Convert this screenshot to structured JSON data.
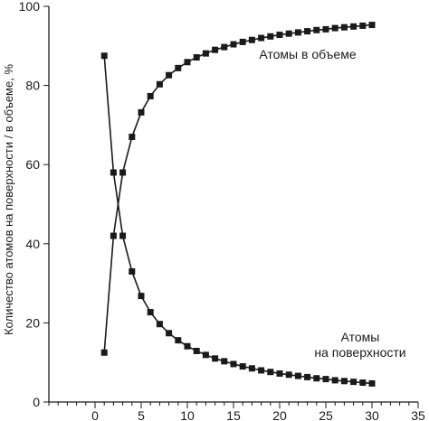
{
  "chart_data": {
    "type": "line",
    "ylabel": "Количество атомов на поверхности / в объеме, %",
    "xlabel": "",
    "xlim": [
      -5,
      35
    ],
    "ylim": [
      0,
      100
    ],
    "xticks": [
      0,
      5,
      10,
      15,
      20,
      25,
      30,
      35
    ],
    "yticks": [
      0,
      20,
      40,
      60,
      80,
      100
    ],
    "grid": false,
    "markers": "square",
    "color": "#1a1a1a",
    "annotations": [
      {
        "lines": [
          "Атомы в объеме"
        ],
        "series": 0
      },
      {
        "lines": [
          "Атомы",
          "на поверхности"
        ],
        "series": 1
      }
    ],
    "series": [
      {
        "name": "Атомы в объеме",
        "x": [
          1,
          2,
          3,
          4,
          5,
          6,
          7,
          8,
          9,
          10,
          11,
          12,
          13,
          14,
          15,
          16,
          17,
          18,
          19,
          20,
          21,
          22,
          23,
          24,
          25,
          26,
          27,
          28,
          29,
          30
        ],
        "y": [
          12.5,
          42,
          58,
          67,
          73.2,
          77.3,
          80.3,
          82.6,
          84.4,
          85.9,
          87.1,
          88.1,
          89.0,
          89.7,
          90.4,
          91.0,
          91.5,
          92.0,
          92.4,
          92.8,
          93.1,
          93.4,
          93.7,
          94.0,
          94.2,
          94.5,
          94.7,
          94.9,
          95.1,
          95.3
        ]
      },
      {
        "name": "Атомы на поверхности",
        "x": [
          1,
          2,
          3,
          4,
          5,
          6,
          7,
          8,
          9,
          10,
          11,
          12,
          13,
          14,
          15,
          16,
          17,
          18,
          19,
          20,
          21,
          22,
          23,
          24,
          25,
          26,
          27,
          28,
          29,
          30
        ],
        "y": [
          87.5,
          58,
          42,
          33,
          26.8,
          22.7,
          19.7,
          17.4,
          15.6,
          14.1,
          12.9,
          11.9,
          11.0,
          10.3,
          9.6,
          9.0,
          8.5,
          8.0,
          7.6,
          7.2,
          6.9,
          6.6,
          6.3,
          6.0,
          5.8,
          5.5,
          5.3,
          5.1,
          4.9,
          4.7
        ]
      }
    ]
  }
}
